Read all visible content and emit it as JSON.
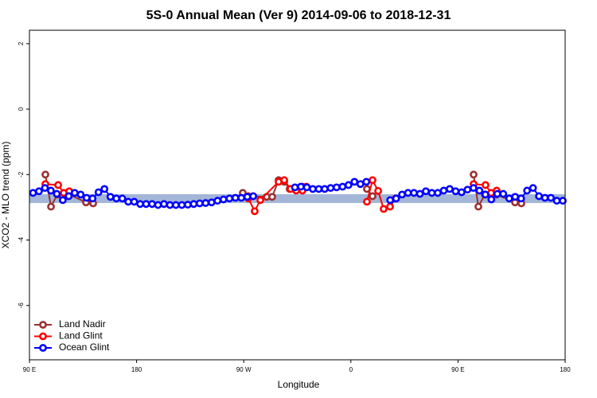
{
  "chart_data": {
    "type": "line",
    "title": "5S-0 Annual Mean (Ver 9)   2014-09-06 to 2018-12-31",
    "x_label": "Longitude",
    "y_label": "XCO2 - MLO trend (ppm)",
    "xlim": [
      90,
      540
    ],
    "xticks": [
      {
        "value": 90,
        "label": "90 E"
      },
      180,
      {
        "value": 270,
        "label": "90 W"
      },
      {
        "value": 360,
        "label": "0"
      },
      {
        "value": 450,
        "label": "90 E"
      },
      {
        "value": 540,
        "label": "180"
      }
    ],
    "ylim": [
      -7.66,
      2.41
    ],
    "yticks": [
      2,
      0,
      -2,
      -4,
      -6
    ],
    "band": {
      "ymin": -2.87,
      "ymax": -2.6,
      "color": "#a3b6d8"
    },
    "legend": "bottom-left",
    "series": [
      {
        "name": "Land Nadir",
        "color": "#9b3030",
        "x": [
          103.4,
          108.1,
          113.4,
          123.4,
          137.5,
          143.5,
          200,
          269.2,
          273.9,
          289.3,
          293.9,
          299.3,
          304.0,
          308.6,
          314.0,
          319.3,
          340,
          373.5,
          378.2,
          420,
          463.1,
          467.1,
          472.5,
          482.5,
          497.9,
          503.2
        ],
        "values": [
          -2.0,
          -2.98,
          -2.61,
          -2.61,
          -2.85,
          -2.88,
          null,
          -2.56,
          -2.66,
          -2.68,
          -2.68,
          -2.17,
          -2.22,
          -2.44,
          -2.44,
          -2.37,
          null,
          -2.44,
          -2.66,
          null,
          -2.0,
          -2.98,
          -2.61,
          -2.61,
          -2.85,
          -2.88
        ]
      },
      {
        "name": "Land Glint",
        "color": "#ff0000",
        "x": [
          103.4,
          114.1,
          118.8,
          123.4,
          200,
          273.9,
          279.2,
          283.9,
          299.3,
          304.0,
          309.3,
          314.0,
          319.3,
          322.7,
          340,
          373.5,
          378.2,
          382.9,
          387.5,
          392.9,
          397.6,
          420,
          463.1,
          473.1,
          477.8,
          482.5
        ],
        "values": [
          -2.29,
          -2.32,
          -2.56,
          -2.51,
          null,
          -2.73,
          -3.12,
          -2.78,
          -2.22,
          -2.17,
          -2.44,
          -2.49,
          -2.49,
          -2.37,
          null,
          -2.83,
          -2.17,
          -2.5,
          -3.05,
          -2.98,
          -2.73,
          null,
          -2.29,
          -2.32,
          -2.56,
          -2.49
        ]
      },
      {
        "name": "Ocean Glint",
        "color": "#0000ff",
        "x": [
          93,
          98,
          103,
          108,
          113,
          118,
          123,
          128,
          133,
          138,
          143,
          148,
          153,
          158,
          163,
          168,
          173,
          178,
          183,
          188,
          193,
          198,
          203,
          208,
          213,
          218,
          223,
          228,
          233,
          238,
          243,
          248,
          253,
          258,
          263,
          268,
          273,
          278,
          283,
          288,
          293,
          298,
          303,
          308,
          313,
          318,
          323,
          328,
          333,
          338,
          343,
          348,
          353,
          358,
          363,
          368,
          373,
          378,
          383,
          388,
          393,
          398,
          403,
          408,
          413,
          418,
          423,
          428,
          433,
          438,
          443,
          448,
          453,
          458,
          463,
          468,
          473,
          478,
          483,
          488,
          493,
          498,
          503,
          508,
          513,
          518,
          523,
          528,
          533,
          538
        ],
        "values": [
          -2.56,
          -2.51,
          -2.41,
          -2.49,
          -2.59,
          -2.78,
          -2.66,
          -2.56,
          -2.61,
          -2.71,
          -2.73,
          -2.54,
          -2.44,
          -2.68,
          -2.73,
          -2.73,
          -2.83,
          -2.83,
          -2.9,
          -2.9,
          -2.9,
          -2.93,
          -2.9,
          -2.93,
          -2.93,
          -2.93,
          -2.92,
          -2.9,
          -2.88,
          -2.87,
          -2.85,
          -2.8,
          -2.76,
          -2.73,
          -2.71,
          -2.71,
          -2.68,
          -2.66,
          null,
          null,
          null,
          null,
          null,
          null,
          -2.39,
          -2.37,
          -2.39,
          -2.44,
          -2.44,
          -2.44,
          -2.41,
          -2.39,
          -2.37,
          -2.32,
          -2.22,
          -2.29,
          -2.22,
          null,
          null,
          null,
          -2.78,
          -2.73,
          -2.61,
          -2.56,
          -2.56,
          -2.59,
          -2.51,
          -2.56,
          -2.56,
          -2.49,
          -2.44,
          -2.51,
          -2.54,
          -2.46,
          -2.41,
          -2.49,
          -2.61,
          -2.76,
          -2.59,
          -2.59,
          -2.73,
          -2.68,
          -2.73,
          -2.49,
          -2.41,
          -2.66,
          -2.71,
          -2.71,
          -2.8,
          -2.8
        ]
      }
    ]
  }
}
